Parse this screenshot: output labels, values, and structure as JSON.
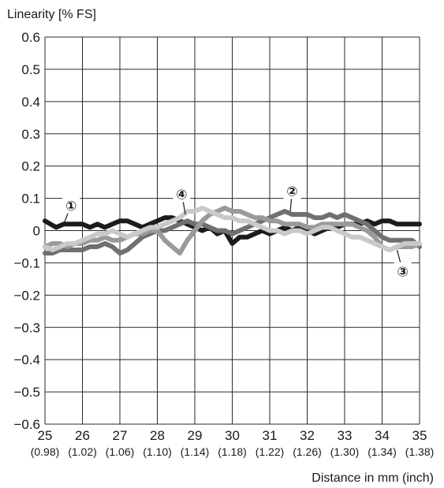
{
  "chart_data": {
    "type": "line",
    "ylabel": "Linearity [% FS]",
    "xlabel": "Distance in mm (inch)",
    "xlim": [
      25,
      35
    ],
    "ylim": [
      -0.6,
      0.6
    ],
    "grid": true,
    "x_ticks": [
      25,
      26,
      27,
      28,
      29,
      30,
      31,
      32,
      33,
      34,
      35
    ],
    "x_ticks_inch": [
      "(0.98)",
      "(1.02)",
      "(1.06)",
      "(1.10)",
      "(1.14)",
      "(1.18)",
      "(1.22)",
      "(1.26)",
      "(1.30)",
      "(1.34)",
      "(1.38)"
    ],
    "y_ticks": [
      0.6,
      0.5,
      0.4,
      0.3,
      0.2,
      0.1,
      0,
      -0.1,
      -0.2,
      -0.3,
      -0.4,
      -0.5,
      -0.6
    ],
    "y_tick_labels": [
      "0.6",
      "0.5",
      "0.4",
      "0.3",
      "0.2",
      "0.1",
      "0",
      "−0.1",
      "−0.2",
      "−0.3",
      "−0.4",
      "−0.5",
      "−0.6"
    ],
    "series": [
      {
        "name": "①",
        "color": "#1c1c1c",
        "x": [
          25.0,
          25.15,
          25.3,
          25.5,
          25.7,
          26.0,
          26.2,
          26.4,
          26.6,
          26.8,
          27.0,
          27.2,
          27.4,
          27.6,
          27.8,
          28.0,
          28.2,
          28.4,
          28.6,
          28.8,
          29.0,
          29.2,
          29.4,
          29.6,
          29.8,
          30.0,
          30.2,
          30.4,
          30.6,
          30.8,
          31.0,
          31.2,
          31.4,
          31.6,
          31.8,
          32.0,
          32.2,
          32.4,
          32.6,
          32.8,
          33.0,
          33.2,
          33.4,
          33.6,
          33.8,
          34.0,
          34.2,
          34.4,
          34.6,
          34.8,
          35.0
        ],
        "values": [
          0.03,
          0.02,
          0.01,
          0.02,
          0.02,
          0.02,
          0.01,
          0.02,
          0.01,
          0.02,
          0.03,
          0.03,
          0.02,
          0.01,
          0.02,
          0.03,
          0.04,
          0.04,
          0.03,
          0.02,
          0.01,
          0.0,
          0.01,
          -0.01,
          0.0,
          -0.04,
          -0.02,
          -0.02,
          -0.01,
          0.0,
          -0.01,
          0.0,
          0.01,
          0.0,
          0.01,
          0.0,
          -0.01,
          0.0,
          0.01,
          0.01,
          0.02,
          0.02,
          0.02,
          0.03,
          0.02,
          0.03,
          0.03,
          0.02,
          0.02,
          0.02,
          0.02
        ]
      },
      {
        "name": "②",
        "color": "#707070",
        "x": [
          25.0,
          25.2,
          25.4,
          25.6,
          25.8,
          26.0,
          26.2,
          26.4,
          26.6,
          26.8,
          27.0,
          27.2,
          27.4,
          27.6,
          27.8,
          28.0,
          28.2,
          28.4,
          28.6,
          28.8,
          29.0,
          29.2,
          29.4,
          29.6,
          29.8,
          30.0,
          30.2,
          30.4,
          30.6,
          30.8,
          31.0,
          31.2,
          31.4,
          31.6,
          31.8,
          32.0,
          32.2,
          32.4,
          32.6,
          32.8,
          33.0,
          33.2,
          33.4,
          33.6,
          33.8,
          34.0,
          34.2,
          34.4,
          34.6,
          34.8,
          35.0
        ],
        "values": [
          -0.07,
          -0.07,
          -0.06,
          -0.06,
          -0.06,
          -0.06,
          -0.05,
          -0.05,
          -0.04,
          -0.05,
          -0.07,
          -0.06,
          -0.04,
          -0.02,
          -0.01,
          0.0,
          0.0,
          0.01,
          0.02,
          0.03,
          0.02,
          0.02,
          0.01,
          0.0,
          0.0,
          -0.01,
          0.0,
          0.01,
          0.02,
          0.03,
          0.04,
          0.05,
          0.06,
          0.05,
          0.05,
          0.05,
          0.04,
          0.04,
          0.05,
          0.04,
          0.05,
          0.04,
          0.03,
          0.02,
          0.0,
          -0.02,
          -0.03,
          -0.03,
          -0.03,
          -0.03,
          -0.05
        ]
      },
      {
        "name": "③",
        "color": "#9a9a9a",
        "x": [
          25.0,
          25.2,
          25.4,
          25.6,
          25.8,
          26.0,
          26.2,
          26.4,
          26.6,
          26.8,
          27.0,
          27.2,
          27.4,
          27.6,
          27.8,
          28.0,
          28.2,
          28.4,
          28.6,
          28.8,
          29.0,
          29.2,
          29.4,
          29.6,
          29.8,
          30.0,
          30.2,
          30.4,
          30.6,
          30.8,
          31.0,
          31.2,
          31.4,
          31.6,
          31.8,
          32.0,
          32.2,
          32.4,
          32.6,
          32.8,
          33.0,
          33.2,
          33.4,
          33.6,
          33.8,
          34.0,
          34.2,
          34.4,
          34.6,
          34.8,
          35.0
        ],
        "values": [
          -0.05,
          -0.04,
          -0.04,
          -0.05,
          -0.04,
          -0.04,
          -0.03,
          -0.03,
          -0.02,
          -0.03,
          -0.03,
          -0.02,
          -0.01,
          -0.01,
          0.0,
          0.0,
          -0.03,
          -0.05,
          -0.07,
          -0.03,
          0.0,
          0.03,
          0.05,
          0.06,
          0.07,
          0.06,
          0.06,
          0.05,
          0.04,
          0.04,
          0.03,
          0.03,
          0.02,
          0.02,
          0.02,
          0.01,
          0.01,
          0.02,
          0.02,
          0.02,
          0.02,
          0.02,
          0.01,
          0.0,
          -0.02,
          -0.05,
          -0.06,
          -0.05,
          -0.05,
          -0.05,
          -0.04
        ]
      },
      {
        "name": "④",
        "color": "#c9c9c9",
        "x": [
          25.0,
          25.2,
          25.4,
          25.6,
          25.8,
          26.0,
          26.2,
          26.4,
          26.6,
          26.8,
          27.0,
          27.2,
          27.4,
          27.6,
          27.8,
          28.0,
          28.2,
          28.4,
          28.6,
          28.8,
          29.0,
          29.2,
          29.4,
          29.6,
          29.8,
          30.0,
          30.2,
          30.4,
          30.6,
          30.8,
          31.0,
          31.2,
          31.4,
          31.6,
          31.8,
          32.0,
          32.2,
          32.4,
          32.6,
          32.8,
          33.0,
          33.2,
          33.4,
          33.6,
          33.8,
          34.0,
          34.2,
          34.4,
          34.6,
          34.8,
          35.0
        ],
        "values": [
          -0.05,
          -0.06,
          -0.05,
          -0.04,
          -0.04,
          -0.03,
          -0.02,
          -0.01,
          -0.01,
          0.0,
          -0.01,
          -0.02,
          -0.01,
          0.0,
          0.01,
          0.01,
          0.02,
          0.03,
          0.04,
          0.06,
          0.06,
          0.07,
          0.06,
          0.05,
          0.04,
          0.04,
          0.03,
          0.03,
          0.02,
          0.01,
          0.0,
          0.0,
          -0.01,
          0.0,
          0.0,
          -0.01,
          0.0,
          0.01,
          0.01,
          0.0,
          -0.01,
          -0.02,
          -0.02,
          -0.03,
          -0.04,
          -0.05,
          -0.06,
          -0.05,
          -0.04,
          -0.04,
          -0.04
        ]
      }
    ],
    "markers": [
      {
        "label": "①",
        "x": 25.7,
        "y": 0.08,
        "tip_x": 25.5,
        "tip_y": 0.02
      },
      {
        "label": "②",
        "x": 31.6,
        "y": 0.125,
        "tip_x": 31.55,
        "tip_y": 0.06
      },
      {
        "label": "③",
        "x": 34.55,
        "y": -0.125,
        "tip_x": 34.4,
        "tip_y": -0.06
      },
      {
        "label": "④",
        "x": 28.65,
        "y": 0.115,
        "tip_x": 28.75,
        "tip_y": 0.05
      }
    ]
  }
}
